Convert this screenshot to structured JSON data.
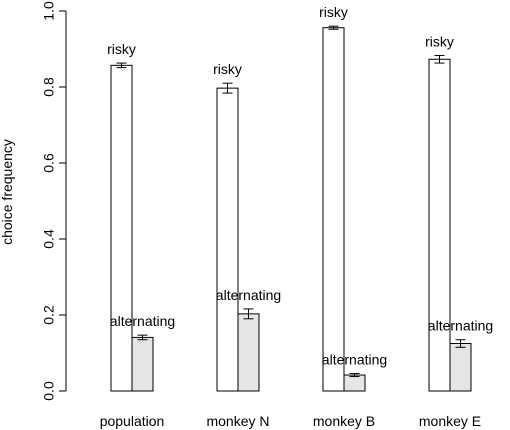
{
  "chart_data": {
    "type": "bar",
    "title": "",
    "xlabel": "",
    "ylabel": "choice frequency",
    "ylim": [
      0,
      1
    ],
    "yticks": [
      0.0,
      0.2,
      0.4,
      0.6,
      0.8,
      1.0
    ],
    "ytick_labels": [
      "0.0",
      "0.2",
      "0.4",
      "0.6",
      "0.8",
      "1.0"
    ],
    "grid": false,
    "categories": [
      "population",
      "monkey N",
      "monkey B",
      "monkey E"
    ],
    "series": [
      {
        "bar_label": "risky",
        "color": "#ffffff",
        "values": [
          0.857,
          0.797,
          0.956,
          0.873
        ],
        "err": [
          0.006,
          0.013,
          0.004,
          0.01
        ]
      },
      {
        "bar_label": "alternating",
        "color": "#e5e5e5",
        "values": [
          0.141,
          0.203,
          0.042,
          0.125
        ],
        "err": [
          0.006,
          0.013,
          0.004,
          0.01
        ]
      }
    ]
  }
}
